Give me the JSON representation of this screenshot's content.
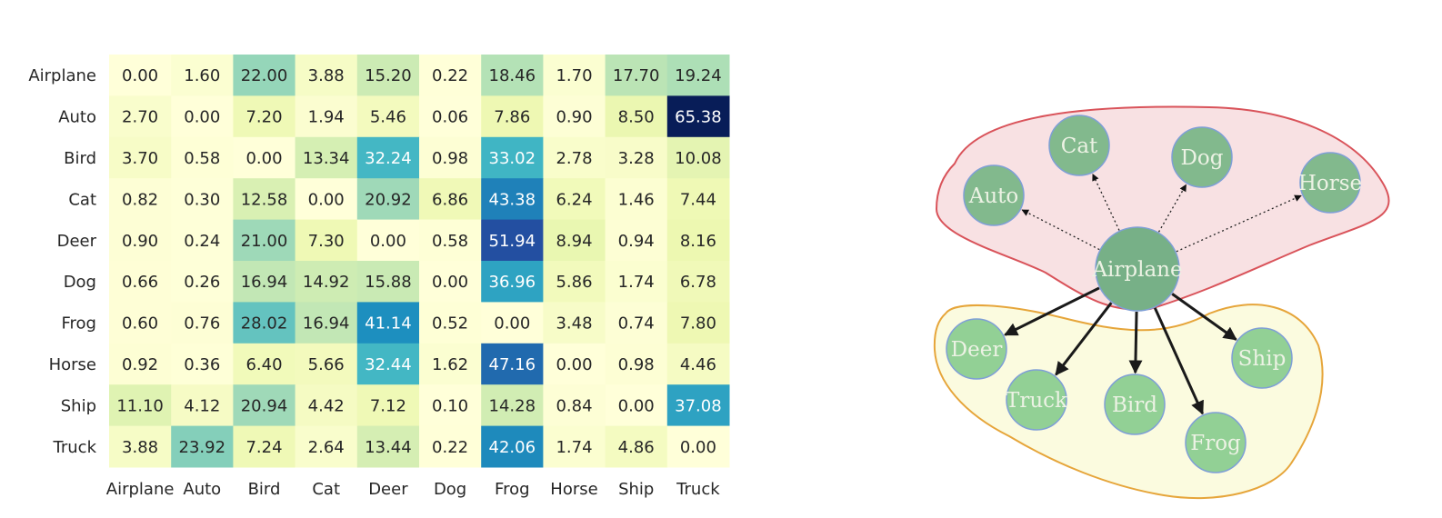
{
  "chart_data": [
    {
      "type": "heatmap",
      "rows": [
        "Airplane",
        "Auto",
        "Bird",
        "Cat",
        "Deer",
        "Dog",
        "Frog",
        "Horse",
        "Ship",
        "Truck"
      ],
      "columns": [
        "Airplane",
        "Auto",
        "Bird",
        "Cat",
        "Deer",
        "Dog",
        "Frog",
        "Horse",
        "Ship",
        "Truck"
      ],
      "values": [
        [
          "0.00",
          "1.60",
          "22.00",
          "3.88",
          "15.20",
          "0.22",
          "18.46",
          "1.70",
          "17.70",
          "19.24"
        ],
        [
          "2.70",
          "0.00",
          "7.20",
          "1.94",
          "5.46",
          "0.06",
          "7.86",
          "0.90",
          "8.50",
          "65.38"
        ],
        [
          "3.70",
          "0.58",
          "0.00",
          "13.34",
          "32.24",
          "0.98",
          "33.02",
          "2.78",
          "3.28",
          "10.08"
        ],
        [
          "0.82",
          "0.30",
          "12.58",
          "0.00",
          "20.92",
          "6.86",
          "43.38",
          "6.24",
          "1.46",
          "7.44"
        ],
        [
          "0.90",
          "0.24",
          "21.00",
          "7.30",
          "0.00",
          "0.58",
          "51.94",
          "8.94",
          "0.94",
          "8.16"
        ],
        [
          "0.66",
          "0.26",
          "16.94",
          "14.92",
          "15.88",
          "0.00",
          "36.96",
          "5.86",
          "1.74",
          "6.78"
        ],
        [
          "0.60",
          "0.76",
          "28.02",
          "16.94",
          "41.14",
          "0.52",
          "0.00",
          "3.48",
          "0.74",
          "7.80"
        ],
        [
          "0.92",
          "0.36",
          "6.40",
          "5.66",
          "32.44",
          "1.62",
          "47.16",
          "0.00",
          "0.98",
          "4.46"
        ],
        [
          "11.10",
          "4.12",
          "20.94",
          "4.42",
          "7.12",
          "0.10",
          "14.28",
          "0.84",
          "0.00",
          "37.08"
        ],
        [
          "3.88",
          "23.92",
          "7.24",
          "2.64",
          "13.44",
          "0.22",
          "42.06",
          "1.74",
          "4.86",
          "0.00"
        ]
      ],
      "colormap": "YlGnBu",
      "value_range": [
        0,
        65.38
      ]
    },
    {
      "type": "diagram",
      "center_node": "Airplane",
      "group_1": {
        "nodes": [
          "Auto",
          "Cat",
          "Dog",
          "Horse"
        ],
        "fill": "#f8e1e3",
        "outline": "#d9535a",
        "edge_style": "dotted"
      },
      "group_2": {
        "nodes": [
          "Deer",
          "Truck",
          "Bird",
          "Frog",
          "Ship"
        ],
        "fill": "#fbfbdf",
        "outline": "#e6a53a",
        "edge_style": "solid"
      },
      "colors": {
        "center_node": "#77b087",
        "group_1_node": "#82b98d",
        "group_2_node": "#92d095",
        "node_border": "#7f9fd6"
      }
    }
  ]
}
